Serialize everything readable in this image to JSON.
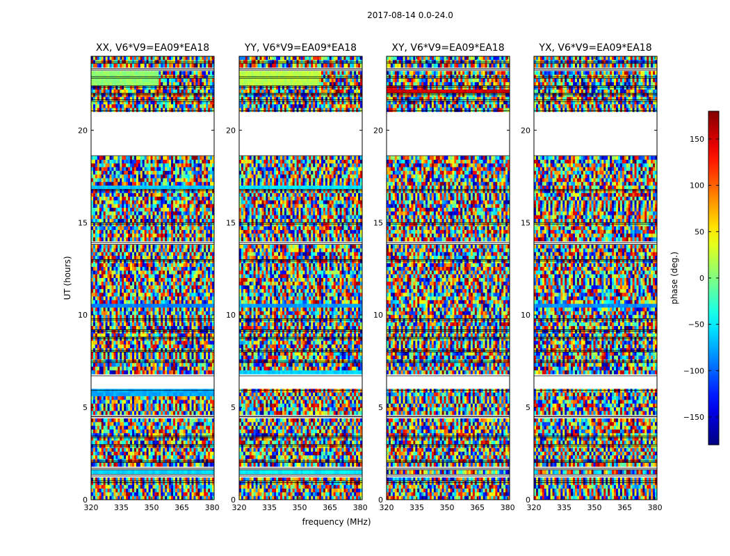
{
  "chart_data": {
    "type": "heatmap",
    "suptitle": "2017-08-14 0.0-24.0",
    "xlabel": "frequency (MHz)",
    "ylabel": "UT (hours)",
    "xlim": [
      320,
      381
    ],
    "ylim": [
      0,
      24
    ],
    "xticks": [
      320,
      335,
      350,
      365,
      380
    ],
    "yticks": [
      0,
      5,
      10,
      15,
      20
    ],
    "colorbar": {
      "label": "phase (deg.)",
      "range": [
        -180,
        180
      ],
      "ticks": [
        -150,
        -100,
        -50,
        0,
        50,
        100,
        150
      ],
      "colormap": "jet"
    },
    "data_gaps_hours": [
      [
        0.92,
        1.02
      ],
      [
        1.28,
        1.36
      ],
      [
        1.62,
        1.7
      ],
      [
        2.02,
        2.1
      ],
      [
        2.9,
        2.98
      ],
      [
        3.35,
        3.45
      ],
      [
        4.48,
        4.52
      ],
      [
        5.92,
        6.7
      ],
      [
        7.42,
        7.5
      ],
      [
        8.0,
        8.08
      ],
      [
        8.72,
        8.8
      ],
      [
        9.12,
        9.2
      ],
      [
        9.72,
        9.8
      ],
      [
        12.92,
        13.0
      ],
      [
        13.82,
        13.92
      ],
      [
        14.92,
        15.0
      ],
      [
        16.72,
        16.8
      ],
      [
        18.62,
        21.05
      ],
      [
        21.55,
        21.65
      ],
      [
        21.92,
        22.0
      ],
      [
        22.32,
        22.4
      ],
      [
        22.82,
        22.9
      ],
      [
        23.25,
        23.33
      ],
      [
        23.62,
        23.7
      ]
    ],
    "panels": [
      {
        "title": "XX, V6*V9=EA09*EA18",
        "coherent_bands": [
          {
            "t0": 1.3,
            "t1": 1.6,
            "f0": 320,
            "f1": 381,
            "phase": -60
          },
          {
            "t0": 5.7,
            "t1": 5.95,
            "f0": 320,
            "f1": 381,
            "phase": -75
          },
          {
            "t0": 10.35,
            "t1": 10.6,
            "f0": 320,
            "f1": 381,
            "phase": -90
          },
          {
            "t0": 16.8,
            "t1": 16.95,
            "f0": 320,
            "f1": 381,
            "phase": -65
          },
          {
            "t0": 22.4,
            "t1": 23.3,
            "f0": 320,
            "f1": 354,
            "phase": 5
          }
        ]
      },
      {
        "title": "YY, V6*V9=EA09*EA18",
        "coherent_bands": [
          {
            "t0": 1.3,
            "t1": 1.6,
            "f0": 320,
            "f1": 381,
            "phase": -50
          },
          {
            "t0": 6.7,
            "t1": 7.0,
            "f0": 320,
            "f1": 381,
            "phase": -60
          },
          {
            "t0": 10.35,
            "t1": 10.6,
            "f0": 320,
            "f1": 381,
            "phase": -80
          },
          {
            "t0": 16.8,
            "t1": 16.95,
            "f0": 320,
            "f1": 381,
            "phase": -55
          },
          {
            "t0": 22.4,
            "t1": 23.3,
            "f0": 320,
            "f1": 360,
            "phase": 20
          }
        ]
      },
      {
        "title": "XY, V6*V9=EA09*EA18",
        "coherent_bands": [
          {
            "t0": 22.0,
            "t1": 22.3,
            "f0": 320,
            "f1": 381,
            "phase": 150
          }
        ]
      },
      {
        "title": "YX, V6*V9=EA09*EA18",
        "coherent_bands": [
          {
            "t0": 10.35,
            "t1": 10.6,
            "f0": 320,
            "f1": 381,
            "phase": -85
          }
        ]
      }
    ]
  }
}
